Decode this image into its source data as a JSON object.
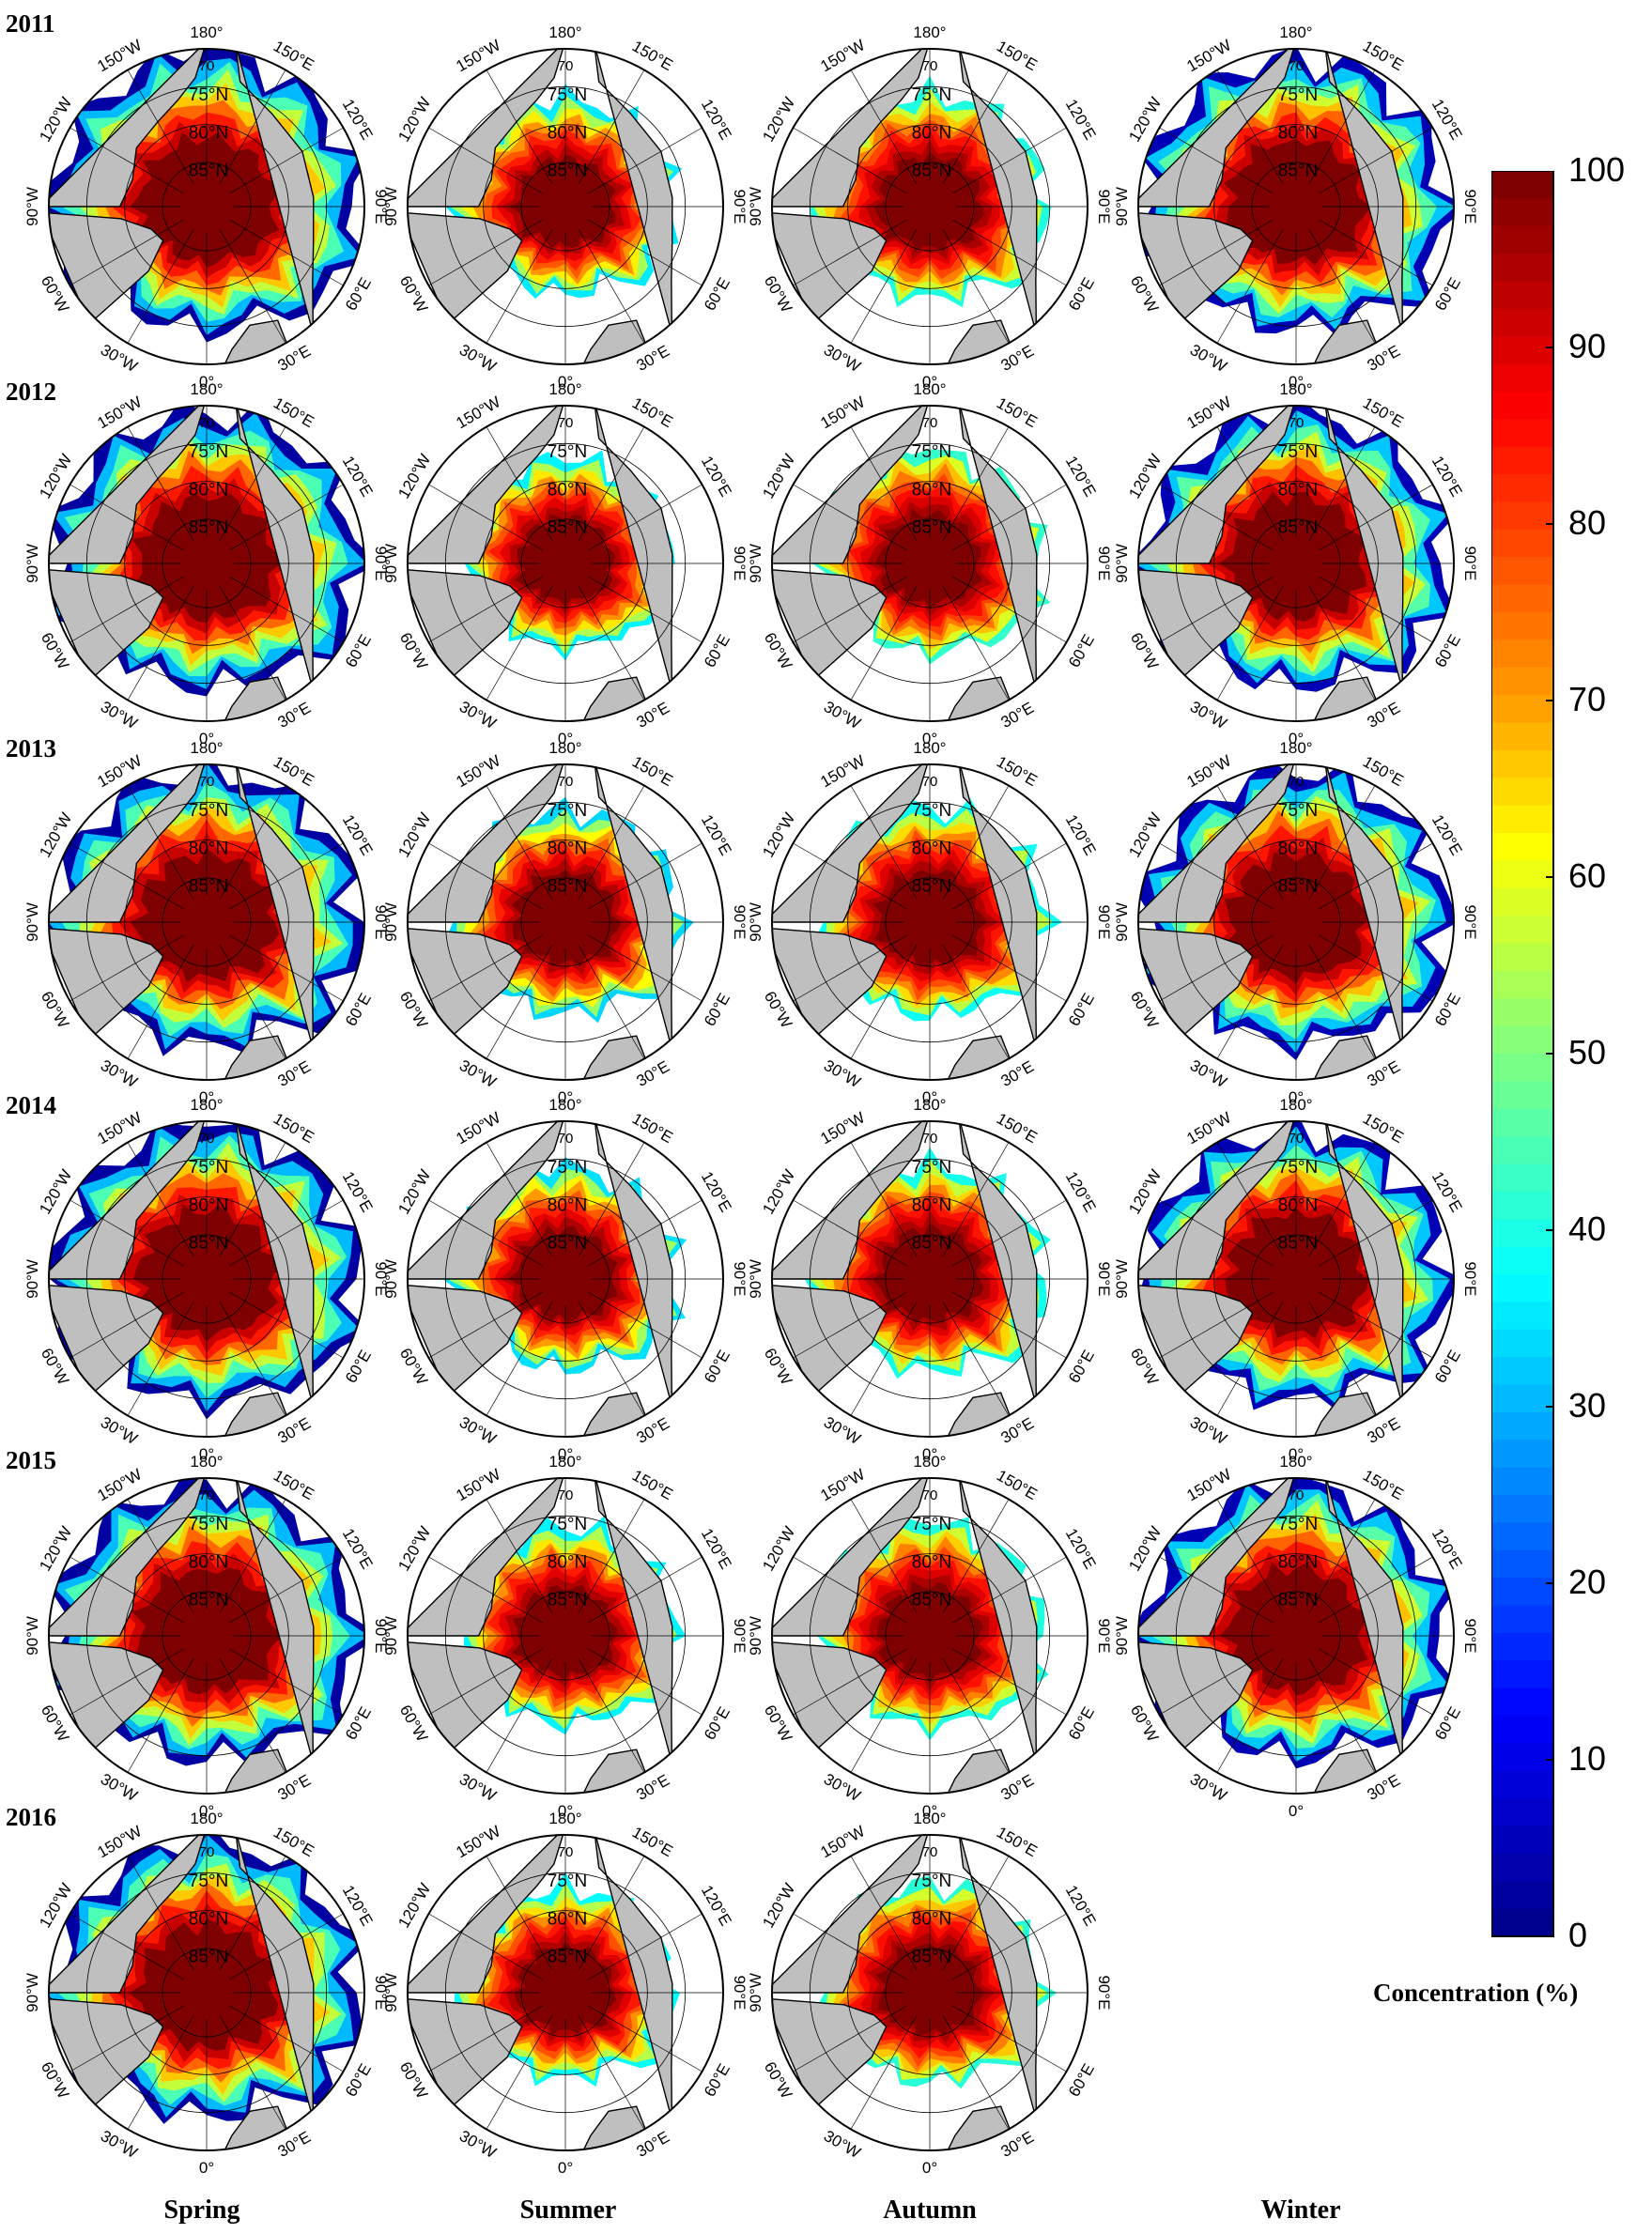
{
  "years": [
    "2011",
    "2012",
    "2013",
    "2014",
    "2015",
    "2016"
  ],
  "seasons": [
    "Spring",
    "Summer",
    "Autumn",
    "Winter"
  ],
  "map_labels": {
    "lon": [
      "180°",
      "150°E",
      "120°E",
      "90°E",
      "60°E",
      "30°E",
      "0°",
      "30°W",
      "60°W",
      "90°W",
      "120°W",
      "150°W"
    ],
    "lat": [
      "75°N",
      "80°N",
      "85°N"
    ],
    "top_fragment": "70"
  },
  "panels": [
    {
      "year": "2011",
      "season": "Spring",
      "extent": 0.96,
      "low": 0.02
    },
    {
      "year": "2011",
      "season": "Summer",
      "extent": 0.68,
      "low": 0.35
    },
    {
      "year": "2011",
      "season": "Autumn",
      "extent": 0.72,
      "low": 0.4
    },
    {
      "year": "2011",
      "season": "Winter",
      "extent": 0.95,
      "low": 0.04
    },
    {
      "year": "2012",
      "season": "Spring",
      "extent": 0.96,
      "low": 0.02
    },
    {
      "year": "2012",
      "season": "Summer",
      "extent": 0.66,
      "low": 0.36
    },
    {
      "year": "2012",
      "season": "Autumn",
      "extent": 0.7,
      "low": 0.42
    },
    {
      "year": "2012",
      "season": "Winter",
      "extent": 0.95,
      "low": 0.04
    },
    {
      "year": "2013",
      "season": "Spring",
      "extent": 0.96,
      "low": 0.02
    },
    {
      "year": "2013",
      "season": "Summer",
      "extent": 0.72,
      "low": 0.33
    },
    {
      "year": "2013",
      "season": "Autumn",
      "extent": 0.73,
      "low": 0.38
    },
    {
      "year": "2013",
      "season": "Winter",
      "extent": 0.95,
      "low": 0.04
    },
    {
      "year": "2014",
      "season": "Spring",
      "extent": 0.96,
      "low": 0.02
    },
    {
      "year": "2014",
      "season": "Summer",
      "extent": 0.7,
      "low": 0.34
    },
    {
      "year": "2014",
      "season": "Autumn",
      "extent": 0.72,
      "low": 0.39
    },
    {
      "year": "2014",
      "season": "Winter",
      "extent": 0.95,
      "low": 0.04
    },
    {
      "year": "2015",
      "season": "Spring",
      "extent": 0.96,
      "low": 0.02
    },
    {
      "year": "2015",
      "season": "Summer",
      "extent": 0.69,
      "low": 0.36
    },
    {
      "year": "2015",
      "season": "Autumn",
      "extent": 0.71,
      "low": 0.4
    },
    {
      "year": "2015",
      "season": "Winter",
      "extent": 0.95,
      "low": 0.04
    },
    {
      "year": "2016",
      "season": "Spring",
      "extent": 0.96,
      "low": 0.02
    },
    {
      "year": "2016",
      "season": "Summer",
      "extent": 0.67,
      "low": 0.37
    },
    {
      "year": "2016",
      "season": "Autumn",
      "extent": 0.7,
      "low": 0.41
    }
  ],
  "colorbar": {
    "title": "Concentration (%)",
    "min": 0,
    "max": 100,
    "ticks": [
      "0",
      "10",
      "20",
      "30",
      "40",
      "50",
      "60",
      "70",
      "80",
      "90",
      "100"
    ],
    "colors": {
      "land": "#bfbfbf",
      "ocean": "#ffffff",
      "dark_red": "#7f0000",
      "red": "#ff0000",
      "orange": "#ff8000",
      "yellow": "#ffff00",
      "cyan": "#00ffff",
      "blue": "#0000ff",
      "dark_blue": "#00008f"
    }
  }
}
